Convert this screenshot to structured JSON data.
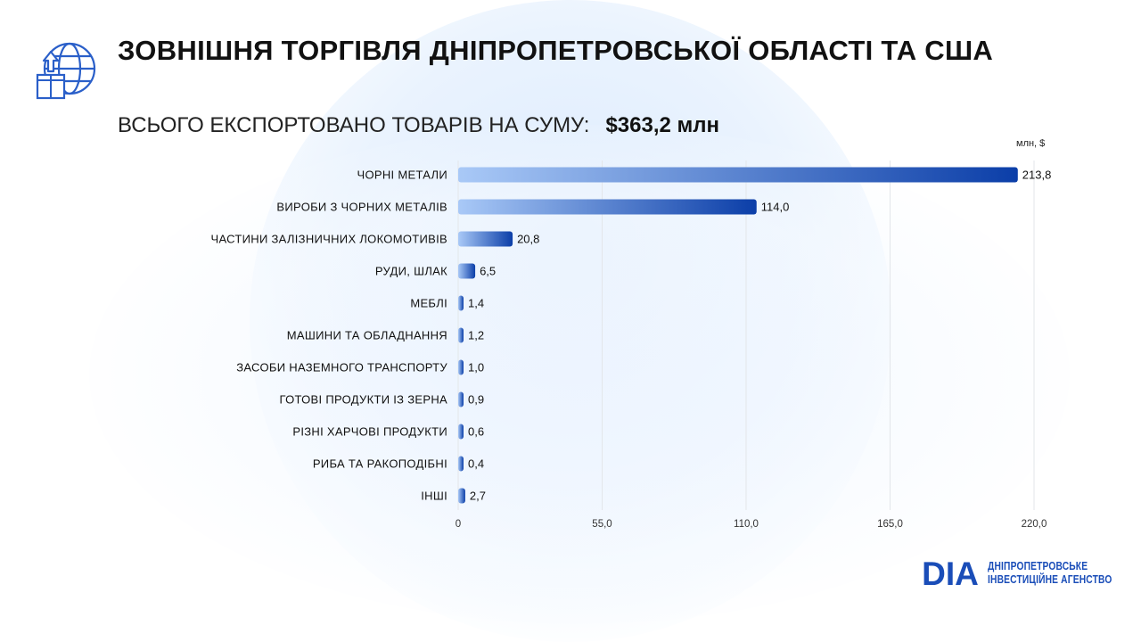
{
  "header": {
    "title": "ЗОВНІШНЯ ТОРГІВЛЯ ДНІПРОПЕТРОВСЬКОЇ ОБЛАСТІ ТА США",
    "subtitle_label": "ВСЬОГО ЕКСПОРТОВАНО ТОВАРІВ НА СУМУ:",
    "subtitle_value": "$363,2 млн",
    "icon": "globe-export-box-icon"
  },
  "logo": {
    "mark": "DIA",
    "line1": "ДНІПРОПЕТРОВСЬКЕ",
    "line2": "ІНВЕСТИЦІЙНЕ АГЕНСТВО"
  },
  "colors": {
    "bar_start": "#a9c9f7",
    "bar_end": "#0b3ea8",
    "grid": "#e3e6ea",
    "text": "#111111",
    "logo": "#1a4db8"
  },
  "chart_data": {
    "type": "bar",
    "orientation": "horizontal",
    "unit_label": "млн, $",
    "categories": [
      "ЧОРНІ МЕТАЛИ",
      "ВИРОБИ З ЧОРНИХ МЕТАЛІВ",
      "ЧАСТИНИ ЗАЛІЗНИЧНИХ ЛОКОМОТИВІВ",
      "РУДИ, ШЛАК",
      "МЕБЛІ",
      "МАШИНИ ТА ОБЛАДНАННЯ",
      "ЗАСОБИ НАЗЕМНОГО ТРАНСПОРТУ",
      "ГОТОВІ ПРОДУКТИ ІЗ ЗЕРНА",
      "РІЗНІ ХАРЧОВІ ПРОДУКТИ",
      "РИБА ТА РАКОПОДІБНІ",
      "ІНШІ"
    ],
    "values": [
      213.8,
      114.0,
      20.8,
      6.5,
      1.4,
      1.2,
      1.0,
      0.9,
      0.6,
      0.4,
      2.7
    ],
    "value_labels": [
      "213,8",
      "114,0",
      "20,8",
      "6,5",
      "1,4",
      "1,2",
      "1,0",
      "0,9",
      "0,6",
      "0,4",
      "2,7"
    ],
    "x_ticks": [
      0,
      55,
      110,
      165,
      220
    ],
    "x_tick_labels": [
      "0",
      "55,0",
      "110,0",
      "165,0",
      "220,0"
    ],
    "xlim": [
      0,
      220
    ],
    "grid": true,
    "legend": "none"
  }
}
